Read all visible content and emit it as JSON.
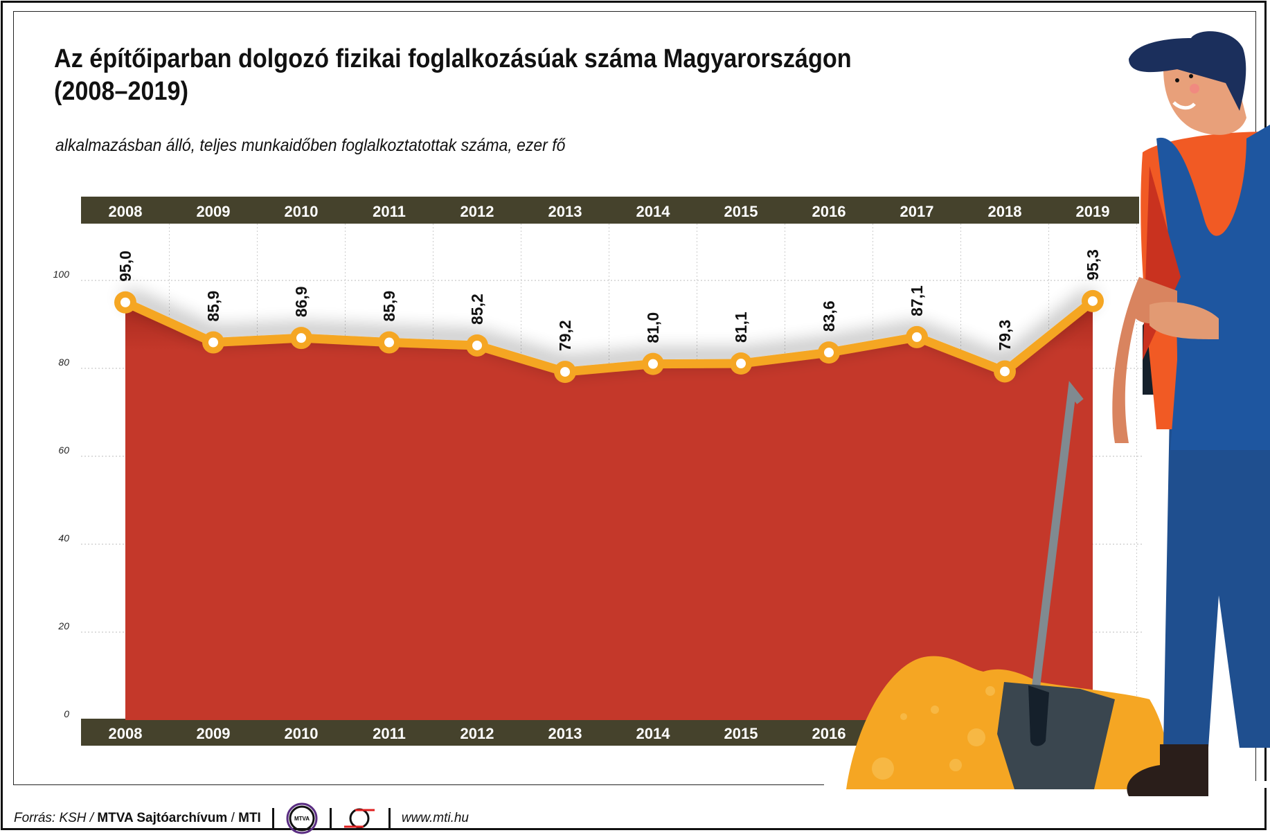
{
  "title_line1": "Az építőiparban dolgozó fizikai foglalkozásúak száma Magyarországon",
  "title_line2": "(2008–2019)",
  "subtitle": "alkalmazásban álló, teljes munkaidőben foglalkoztatottak száma, ezer fő",
  "chart_data": {
    "type": "area",
    "title": "Az építőiparban dolgozó fizikai foglalkozásúak száma Magyarországon (2008–2019)",
    "ylabel": "ezer fő",
    "categories": [
      "2008",
      "2009",
      "2010",
      "2011",
      "2012",
      "2013",
      "2014",
      "2015",
      "2016",
      "2017",
      "2018",
      "2019"
    ],
    "values": [
      95.0,
      85.9,
      86.9,
      85.9,
      85.2,
      79.2,
      81.0,
      81.1,
      83.6,
      87.1,
      79.3,
      95.3
    ],
    "value_labels": [
      "95,0",
      "85,9",
      "86,9",
      "85,9",
      "85,2",
      "79,2",
      "81,0",
      "81,1",
      "83,6",
      "87,1",
      "79,3",
      "95,3"
    ],
    "ylim": [
      0,
      100
    ],
    "yticks": [
      0,
      20,
      40,
      60,
      80,
      100
    ],
    "ytick_labels": [
      "0",
      "20",
      "40",
      "60",
      "80",
      "100"
    ],
    "grid": true,
    "colors": {
      "area": "#c4382a",
      "line": "#f5a623",
      "header": "#45422c"
    }
  },
  "footer": {
    "source_prefix": "Forrás: KSH / ",
    "source_bold": "MTVA Sajtóarchívum",
    "source_mid": " / ",
    "source_bold2": "MTI",
    "logo_text": "MTVA",
    "url": "www.mti.hu"
  }
}
